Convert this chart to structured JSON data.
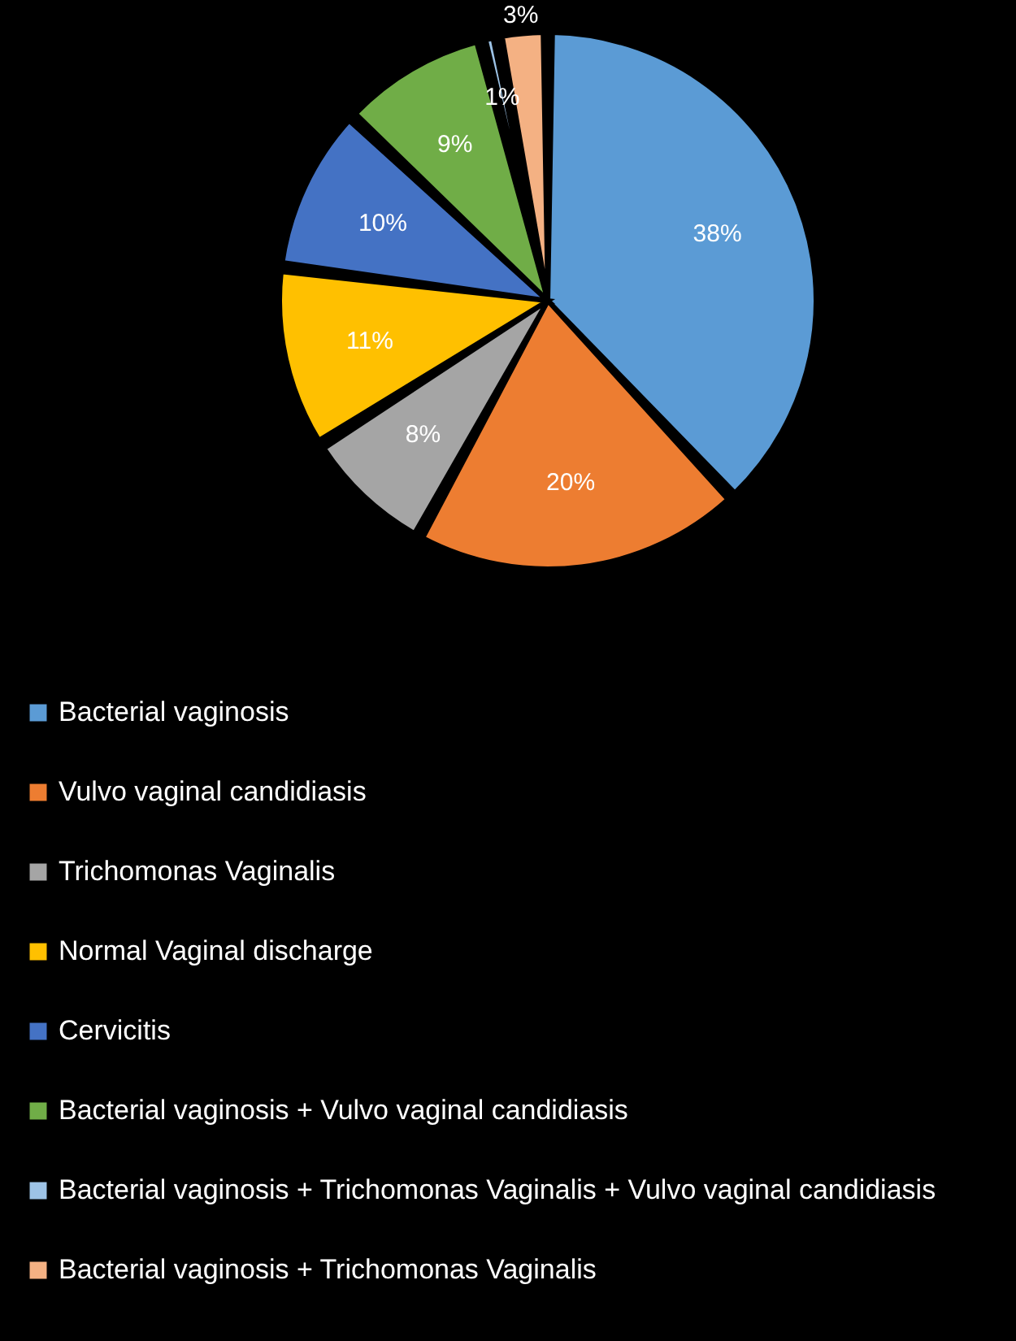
{
  "chart_data": {
    "type": "pie",
    "categories": [
      "Bacterial vaginosis",
      "Vulvo vaginal candidiasis",
      "Trichomonas Vaginalis",
      "Normal Vaginal discharge",
      "Cervicitis",
      "Bacterial vaginosis + Vulvo vaginal candidiasis",
      "Bacterial vaginosis + Trichomonas Vaginalis + Vulvo vaginal candidiasis",
      "Bacterial vaginosis + Trichomonas Vaginalis"
    ],
    "values": [
      38,
      20,
      8,
      11,
      10,
      9,
      1,
      3
    ],
    "colors": [
      "#5b9bd5",
      "#ed7d31",
      "#a5a5a5",
      "#ffc000",
      "#4472c4",
      "#70ad47",
      "#9dc3e6",
      "#f4b183"
    ],
    "value_labels": [
      "38%",
      "20%",
      "8%",
      "11%",
      "10%",
      "9%",
      "1%",
      "3%"
    ],
    "legend": "bottom"
  }
}
